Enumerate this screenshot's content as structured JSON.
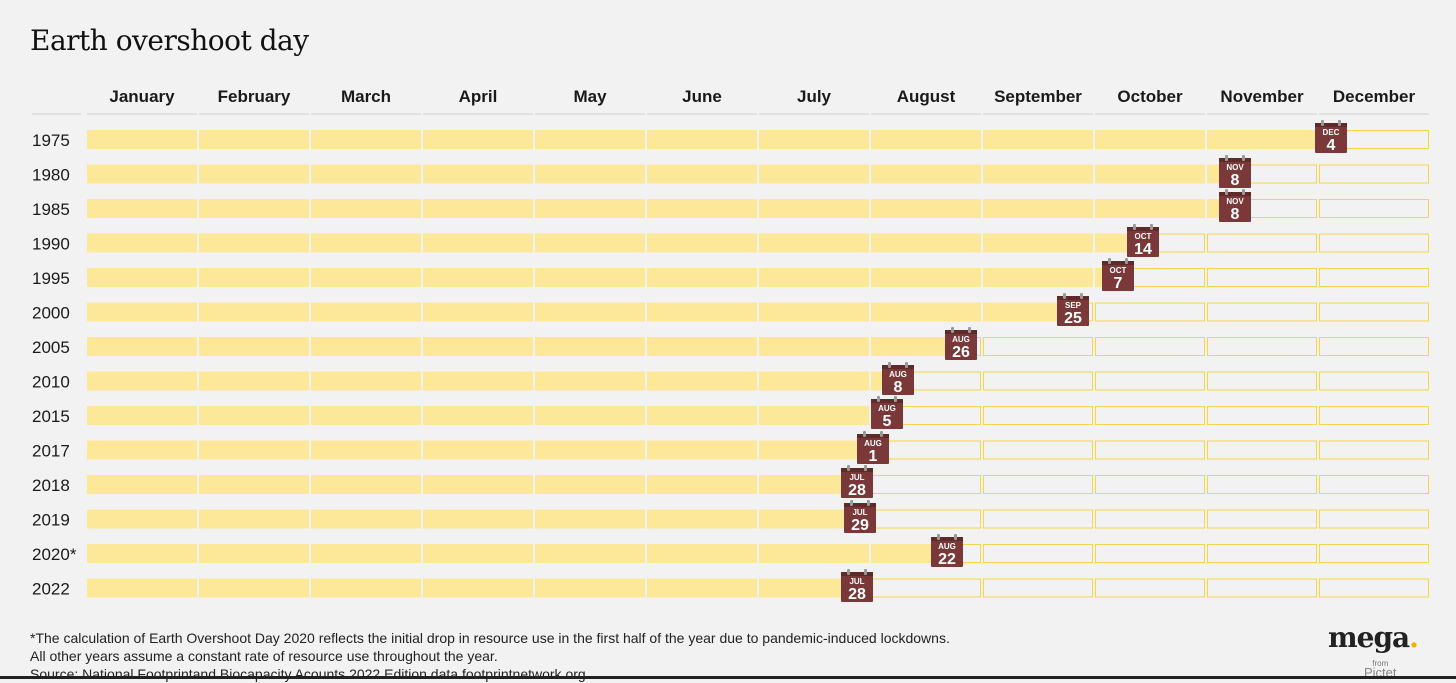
{
  "title": "Earth overshoot day",
  "colors": {
    "bar_fill": "#fde89a",
    "bar_outline": "#f5d54a",
    "calendar_body": "#7a3838",
    "calendar_rings": "#9a9a9a",
    "background": "#f2f2f2"
  },
  "chart_data": {
    "type": "bar",
    "columns": [
      "January",
      "February",
      "March",
      "April",
      "May",
      "June",
      "July",
      "August",
      "September",
      "October",
      "November",
      "December"
    ],
    "rows": [
      {
        "year": "1975",
        "month": "DEC",
        "day": "4",
        "month_index": 12,
        "day_num": 4
      },
      {
        "year": "1980",
        "month": "NOV",
        "day": "8",
        "month_index": 11,
        "day_num": 8
      },
      {
        "year": "1985",
        "month": "NOV",
        "day": "8",
        "month_index": 11,
        "day_num": 8
      },
      {
        "year": "1990",
        "month": "OCT",
        "day": "14",
        "month_index": 10,
        "day_num": 14
      },
      {
        "year": "1995",
        "month": "OCT",
        "day": "7",
        "month_index": 10,
        "day_num": 7
      },
      {
        "year": "2000",
        "month": "SEP",
        "day": "25",
        "month_index": 9,
        "day_num": 25
      },
      {
        "year": "2005",
        "month": "AUG",
        "day": "26",
        "month_index": 8,
        "day_num": 26
      },
      {
        "year": "2010",
        "month": "AUG",
        "day": "8",
        "month_index": 8,
        "day_num": 8
      },
      {
        "year": "2015",
        "month": "AUG",
        "day": "5",
        "month_index": 8,
        "day_num": 5
      },
      {
        "year": "2017",
        "month": "AUG",
        "day": "1",
        "month_index": 8,
        "day_num": 1
      },
      {
        "year": "2018",
        "month": "JUL",
        "day": "28",
        "month_index": 7,
        "day_num": 28
      },
      {
        "year": "2019",
        "month": "JUL",
        "day": "29",
        "month_index": 7,
        "day_num": 29
      },
      {
        "year": "2020*",
        "month": "AUG",
        "day": "22",
        "month_index": 8,
        "day_num": 22
      },
      {
        "year": "2022",
        "month": "JUL",
        "day": "28",
        "month_index": 7,
        "day_num": 28
      }
    ]
  },
  "footnote": {
    "line1": "*The calculation of Earth Overshoot Day 2020 reflects the initial drop in resource use in the first half of the year due to pandemic-induced lockdowns.",
    "line2": "All other years assume a constant rate of resource use throughout the year.",
    "line3": "Source: National Footprintand Biocapacity Acounts 2022 Edition data.footprintnetwork.org"
  },
  "logo": {
    "main": "mega",
    "dot": ".",
    "from": "from",
    "brand": "Pictet"
  }
}
